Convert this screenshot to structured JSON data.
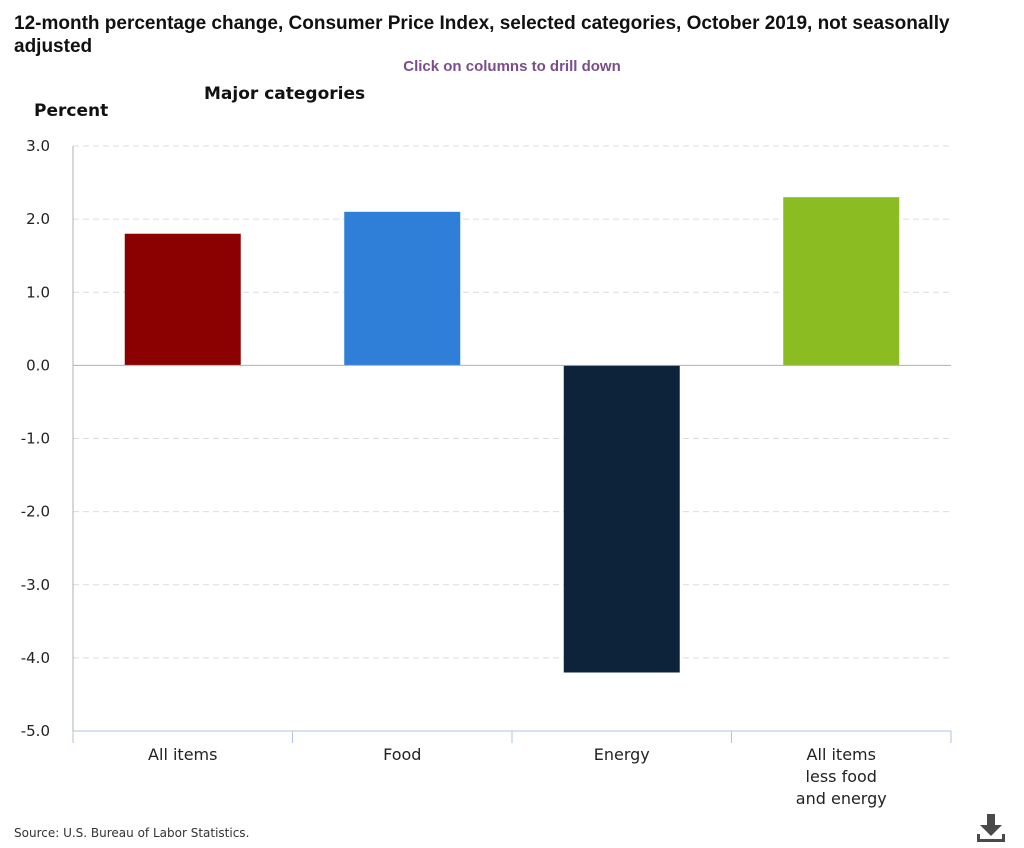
{
  "chart_data": {
    "type": "bar",
    "title": "12-month percentage change, Consumer Price Index, selected categories, October 2019, not seasonally adjusted",
    "subtitle": "Click on columns to drill down",
    "drilldown_label": "Major categories",
    "ylabel": "Percent",
    "xlabel": "",
    "ylim": [
      -5.0,
      3.0
    ],
    "yticks": [
      "3.0",
      "2.0",
      "1.0",
      "0.0",
      "-1.0",
      "-2.0",
      "-3.0",
      "-4.0",
      "-5.0"
    ],
    "ytick_values": [
      3,
      2,
      1,
      0,
      -1,
      -2,
      -3,
      -4,
      -5
    ],
    "categories": [
      [
        "All items"
      ],
      [
        "Food"
      ],
      [
        "Energy"
      ],
      [
        "All items",
        "less food",
        "and energy"
      ]
    ],
    "values": [
      1.8,
      2.1,
      -4.2,
      2.3
    ],
    "colors": [
      "#8b0000",
      "#2f7ed8",
      "#0d233a",
      "#8bbc21"
    ],
    "grid": true,
    "legend": "none"
  },
  "source": "Source: U.S. Bureau of Labor Statistics.",
  "download_icon": "download-icon"
}
